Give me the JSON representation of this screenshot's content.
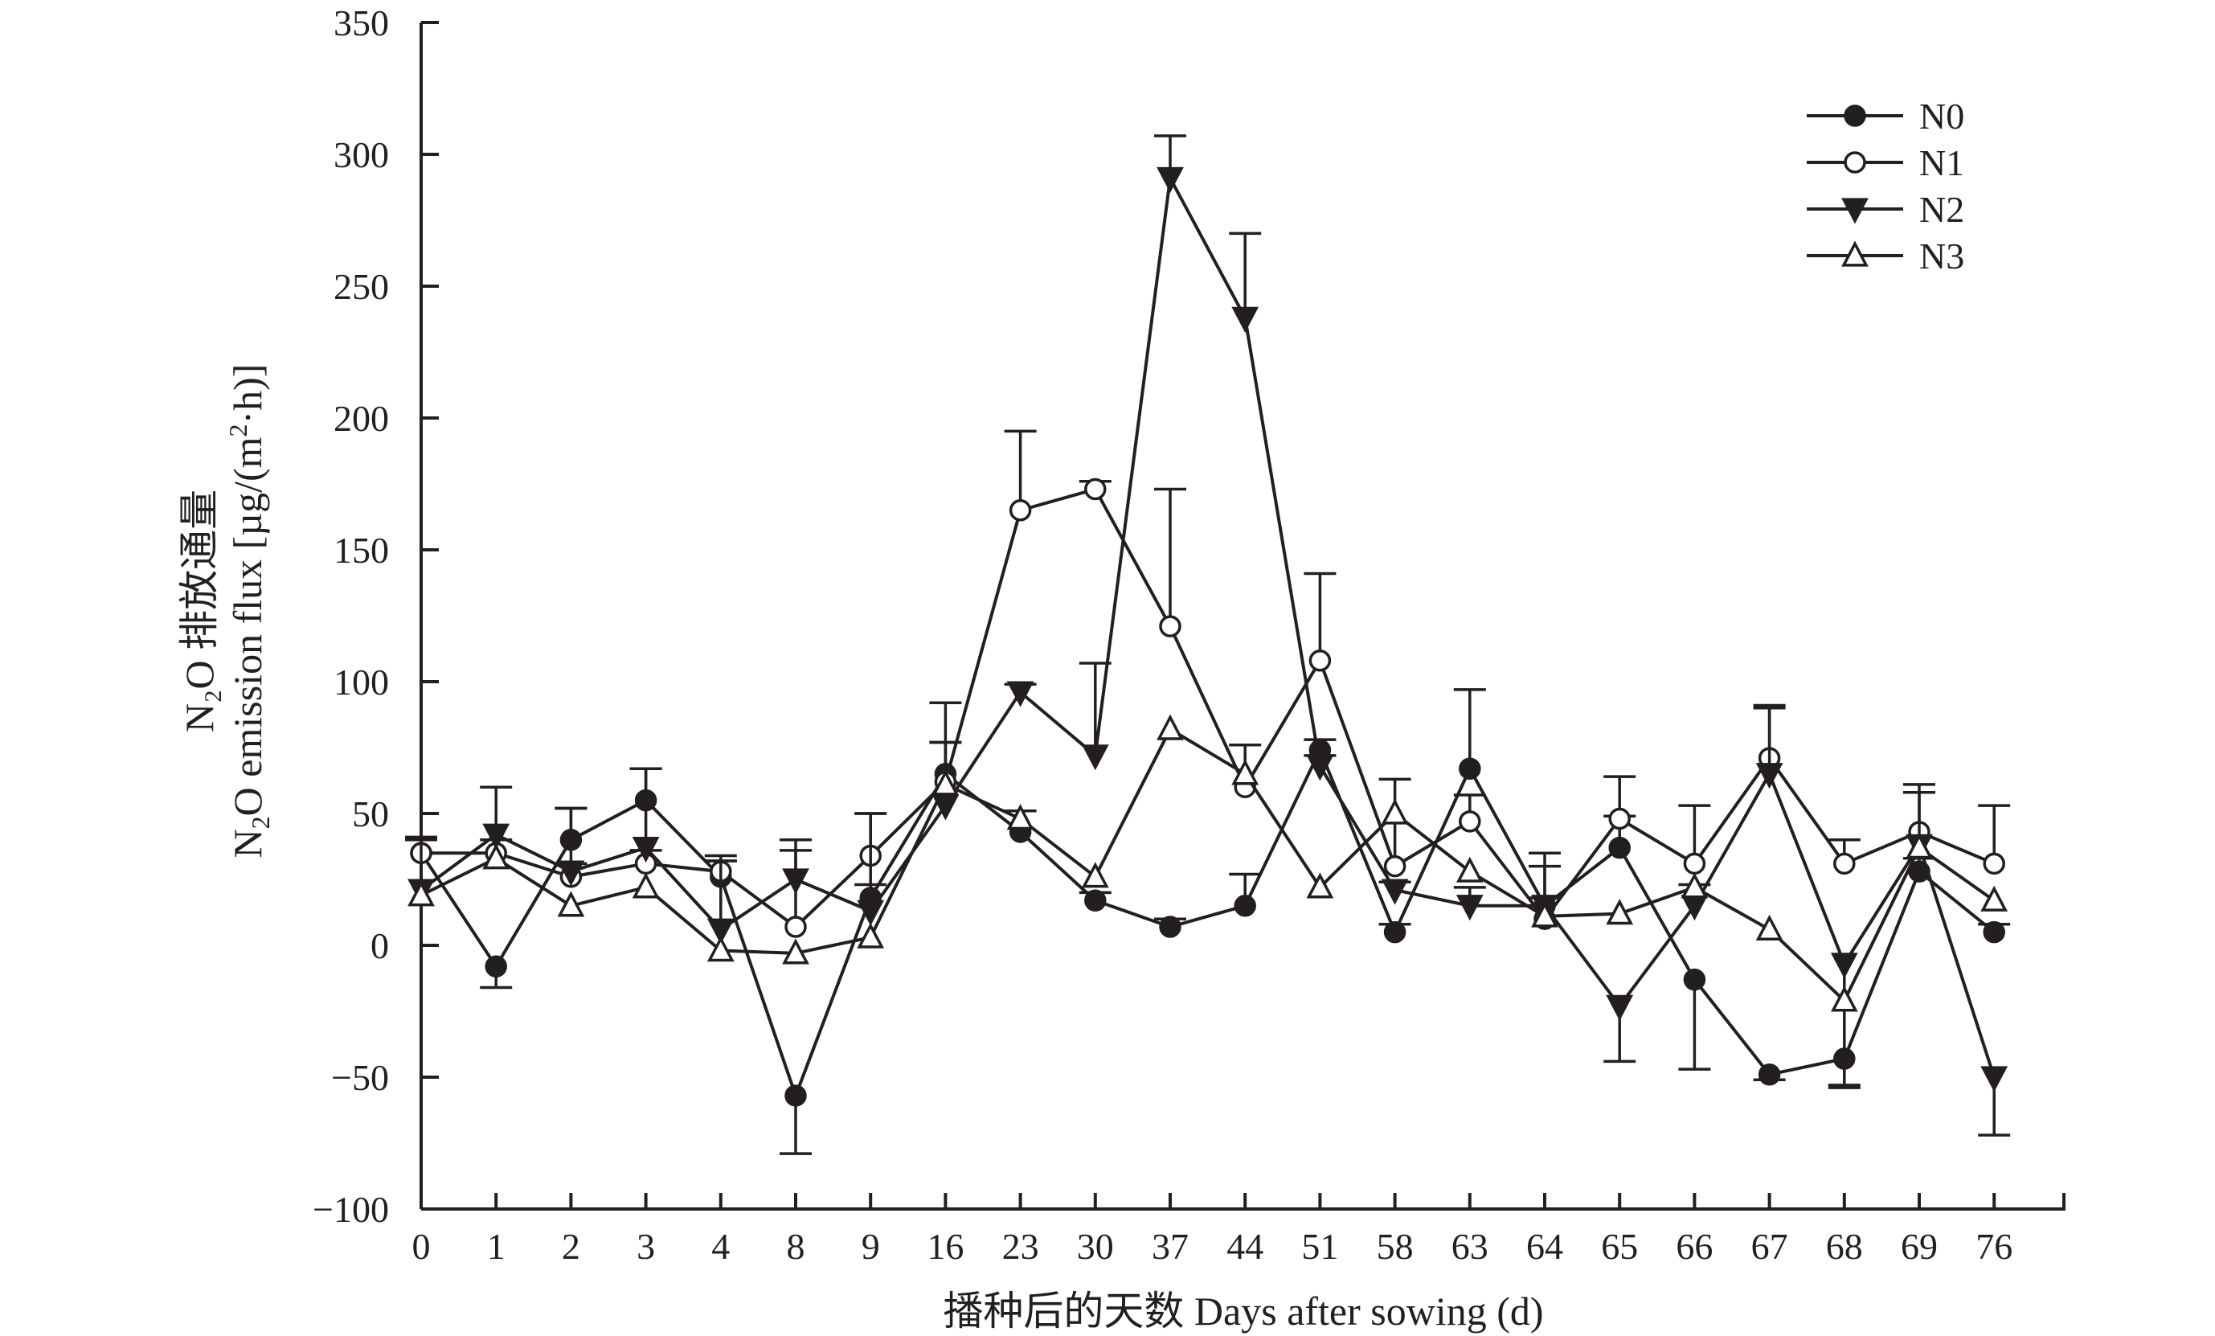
{
  "chart_data": {
    "type": "line",
    "title": "",
    "ylabel_cn": "N₂O 排放通量",
    "ylabel_en_lead": "N",
    "ylabel_en_sub": "2",
    "ylabel_en_tail": "O emission flux [µg/(m",
    "ylabel_en_sup": "2",
    "ylabel_en_end": "·h)]",
    "xlabel": "播种后的天数 Days after sowing (d)",
    "ylim": [
      -100,
      350
    ],
    "yticks": [
      -100,
      -50,
      0,
      50,
      100,
      150,
      200,
      250,
      300,
      350
    ],
    "ytick_labels": [
      "−100",
      "−50",
      "0",
      "50",
      "100",
      "150",
      "200",
      "250",
      "300",
      "350"
    ],
    "categories": [
      "0",
      "1",
      "2",
      "3",
      "4",
      "8",
      "9",
      "16",
      "23",
      "30",
      "37",
      "44",
      "51",
      "58",
      "63",
      "64",
      "65",
      "66",
      "67",
      "68",
      "69",
      "76"
    ],
    "legend_position": "top-right",
    "series": [
      {
        "name": "N0",
        "marker": "filled-circle",
        "values": [
          35,
          -8,
          40,
          55,
          26,
          -57,
          18,
          65,
          43,
          17,
          7,
          15,
          74,
          5,
          67,
          15,
          37,
          -13,
          -49,
          -43,
          28,
          5
        ],
        "errors": [
          6,
          8,
          12,
          12,
          6,
          22,
          5,
          12,
          8,
          3,
          3,
          12,
          4,
          3,
          30,
          20,
          12,
          34,
          2,
          10,
          5,
          3
        ]
      },
      {
        "name": "N1",
        "marker": "open-circle",
        "values": [
          35,
          35,
          26,
          31,
          28,
          7,
          34,
          62,
          165,
          173,
          121,
          60,
          108,
          30,
          47,
          10,
          48,
          31,
          71,
          31,
          43,
          31
        ],
        "errors": [
          5,
          5,
          5,
          5,
          4,
          33,
          16,
          30,
          30,
          3,
          52,
          16,
          33,
          33,
          10,
          20,
          16,
          22,
          20,
          9,
          15,
          22
        ]
      },
      {
        "name": "N2",
        "marker": "filled-triangle-down",
        "values": [
          21,
          42,
          28,
          37,
          6,
          25,
          13,
          53,
          96,
          72,
          291,
          238,
          68,
          21,
          15,
          15,
          -23,
          15,
          65,
          -7,
          38,
          -50
        ],
        "errors": [
          20,
          18,
          24,
          30,
          28,
          11,
          37,
          24,
          3,
          35,
          16,
          32,
          4,
          3,
          7,
          3,
          21,
          8,
          25,
          47,
          23,
          22
        ]
      },
      {
        "name": "N3",
        "marker": "open-triangle-up",
        "values": [
          19,
          33,
          15,
          22,
          -2,
          -3,
          3,
          61,
          48,
          26,
          82,
          65,
          22,
          50,
          28,
          11,
          12,
          22,
          6,
          -21,
          37,
          17
        ]
      }
    ]
  }
}
